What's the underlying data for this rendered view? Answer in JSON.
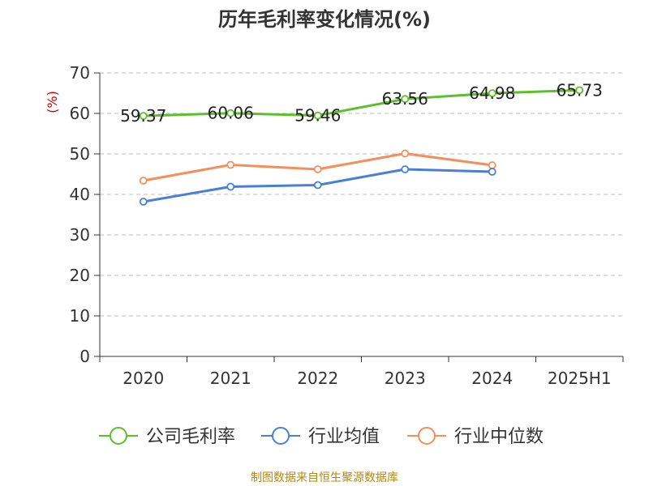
{
  "chart_data": {
    "type": "line",
    "title": "历年毛利率变化情况(%)",
    "ylabel": "(%)",
    "categories": [
      "2020",
      "2021",
      "2022",
      "2023",
      "2024",
      "2025H1"
    ],
    "ylim": [
      0,
      70
    ],
    "yticks": [
      0,
      10,
      20,
      30,
      40,
      50,
      60,
      70
    ],
    "grid": true,
    "legend_position": "bottom",
    "series": [
      {
        "name": "公司毛利率",
        "color": "#5dbf2b",
        "values": [
          59.37,
          60.06,
          59.46,
          63.56,
          64.98,
          65.73
        ],
        "labels": [
          "59.37",
          "60.06",
          "59.46",
          "63.56",
          "64.98",
          "65.73"
        ]
      },
      {
        "name": "行业均值",
        "color": "#4a7fd6",
        "values": [
          38.2,
          41.9,
          42.3,
          46.2,
          45.6,
          null
        ]
      },
      {
        "name": "行业中位数",
        "color": "#f58f5a",
        "values": [
          43.4,
          47.3,
          46.2,
          50.1,
          47.2,
          null
        ]
      }
    ],
    "source": "制图数据来自恒生聚源数据库"
  }
}
